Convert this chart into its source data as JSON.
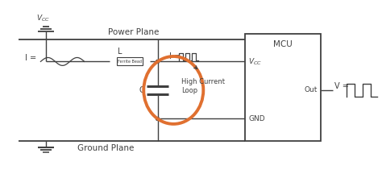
{
  "bg_color": "#ffffff",
  "line_color": "#404040",
  "orange_color": "#E07030",
  "power_plane_label": "Power Plane",
  "ground_plane_label": "Ground Plane",
  "mcu_label": "MCU",
  "gnd_label": "GND",
  "out_label": "Out",
  "high_current_label": "High Current\nLoop",
  "ferrite_label": "Ferrite Bead",
  "C_label": "C",
  "L_label": "L"
}
